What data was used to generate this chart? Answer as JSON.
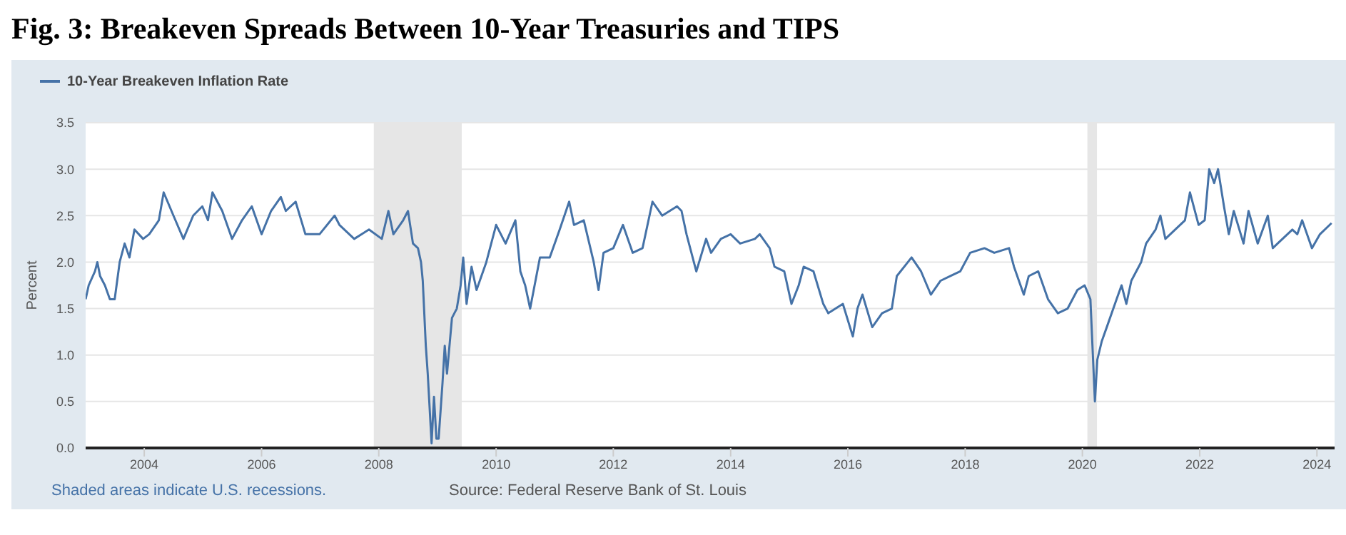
{
  "chart_data": {
    "type": "line",
    "title": "Fig. 3: Breakeven Spreads Between 10-Year Treasuries and TIPS",
    "ylabel": "Percent",
    "annotations": [
      "Shaded areas indicate U.S. recessions.",
      "Source: Federal Reserve Bank of St. Louis"
    ],
    "legend": "top left",
    "grid": "y",
    "marker": "none",
    "line_style": "solid",
    "xlim": [
      "2003-01",
      "2024-04-20"
    ],
    "xticks": [
      "2004",
      "2006",
      "2008",
      "2010",
      "2012",
      "2014",
      "2016",
      "2018",
      "2020",
      "2022",
      "2024"
    ],
    "ylim": [
      0,
      3.5
    ],
    "yticks": [
      {
        "value": 0,
        "label": "0.0"
      },
      0.5,
      {
        "value": 1,
        "label": "1.0"
      },
      1.5,
      {
        "value": 2,
        "label": "2.0"
      },
      2.5,
      {
        "value": 3,
        "label": "3.0"
      },
      3.5
    ],
    "bands": [
      {
        "axis": "x",
        "from": "2007-12",
        "to": "2009-06",
        "color": "#e6e6e6"
      },
      {
        "axis": "x",
        "from": "2020-02",
        "to": "2020-04",
        "color": "#e6e6e6"
      }
    ],
    "x": [
      "2003-01",
      "2003-01-20",
      "2003-02-28",
      "2003-03-15",
      "2003-04",
      "2003-05",
      "2003-06",
      "2003-07",
      "2003-08",
      "2003-09",
      "2003-10",
      "2003-11",
      "2003-12-25",
      "2004-02",
      "2004-04",
      "2004-05",
      "2004-07",
      "2004-09",
      "2004-11",
      "2004-12-28",
      "2005-02",
      "2005-03",
      "2005-05",
      "2005-07",
      "2005-09",
      "2005-11",
      "2006-01",
      "2006-03",
      "2006-05",
      "2006-06",
      "2006-08",
      "2006-10",
      "2006-12-28",
      "2007-04",
      "2007-05",
      "2007-08",
      "2007-11",
      "2008-01-20",
      "2008-03",
      "2008-04",
      "2008-06",
      "2008-07",
      "2008-08",
      "2008-09",
      "2008-09-20",
      "2008-10",
      "2008-10-20",
      "2008-11",
      "2008-11-25",
      "2008-12-10",
      "2008-12-25",
      "2009-01-08",
      "2009-02",
      "2009-02-15",
      "2009-03",
      "2009-04",
      "2009-05",
      "2009-05-25",
      "2009-06-10",
      "2009-07",
      "2009-08",
      "2009-09",
      "2009-11",
      "2010-01",
      "2010-03",
      "2010-05",
      "2010-06",
      "2010-07",
      "2010-08",
      "2010-10",
      "2010-12",
      "2011-02",
      "2011-04",
      "2011-05",
      "2011-07",
      "2011-09",
      "2011-10",
      "2011-11",
      "2012-01",
      "2012-03",
      "2012-05",
      "2012-07",
      "2012-09",
      "2012-11",
      "2013-02",
      "2013-03",
      "2013-04",
      "2013-06",
      "2013-08",
      "2013-09",
      "2013-11",
      "2014-01",
      "2014-03",
      "2014-06",
      "2014-07",
      "2014-09",
      "2014-10",
      "2014-12",
      "2015-01-15",
      "2015-03",
      "2015-04",
      "2015-06",
      "2015-08",
      "2015-09",
      "2015-12",
      "2016-02",
      "2016-03",
      "2016-04",
      "2016-06",
      "2016-08",
      "2016-10",
      "2016-11",
      "2017-02",
      "2017-04",
      "2017-06",
      "2017-08",
      "2017-10",
      "2017-12",
      "2018-02",
      "2018-05",
      "2018-07",
      "2018-10",
      "2018-11",
      "2019-01",
      "2019-02",
      "2019-04",
      "2019-06",
      "2019-08",
      "2019-10",
      "2019-12",
      "2020-01-15",
      "2020-02-20",
      "2020-03-05",
      "2020-03-19",
      "2020-04-03",
      "2020-05",
      "2020-06",
      "2020-08",
      "2020-09",
      "2020-10",
      "2020-11",
      "2021-01",
      "2021-02",
      "2021-04",
      "2021-05",
      "2021-06",
      "2021-08",
      "2021-10",
      "2021-11",
      "2021-12-25",
      "2022-02",
      "2022-03",
      "2022-04",
      "2022-04-25",
      "2022-06",
      "2022-07",
      "2022-08",
      "2022-10",
      "2022-11",
      "2022-12-28",
      "2023-03",
      "2023-04",
      "2023-05",
      "2023-08",
      "2023-09",
      "2023-10",
      "2023-12",
      "2024-01-20",
      "2024-04"
    ],
    "series": [
      {
        "name": "10-Year Breakeven Inflation Rate",
        "color": "#4572a7",
        "values": [
          1.6,
          1.75,
          1.9,
          2.0,
          1.85,
          1.75,
          1.6,
          1.6,
          2.0,
          2.2,
          2.05,
          2.35,
          2.25,
          2.3,
          2.45,
          2.75,
          2.5,
          2.25,
          2.5,
          2.6,
          2.45,
          2.75,
          2.55,
          2.25,
          2.45,
          2.6,
          2.3,
          2.55,
          2.7,
          2.55,
          2.65,
          2.3,
          2.3,
          2.5,
          2.4,
          2.25,
          2.35,
          2.25,
          2.55,
          2.3,
          2.45,
          2.55,
          2.2,
          2.15,
          2.0,
          1.8,
          1.1,
          0.8,
          0.05,
          0.55,
          0.1,
          0.1,
          0.7,
          1.1,
          0.8,
          1.4,
          1.5,
          1.75,
          2.05,
          1.55,
          1.95,
          1.7,
          2.0,
          2.4,
          2.2,
          2.45,
          1.9,
          1.75,
          1.5,
          2.05,
          2.05,
          2.35,
          2.65,
          2.4,
          2.45,
          2.0,
          1.7,
          2.1,
          2.15,
          2.4,
          2.1,
          2.15,
          2.65,
          2.5,
          2.6,
          2.55,
          2.3,
          1.9,
          2.25,
          2.1,
          2.25,
          2.3,
          2.2,
          2.25,
          2.3,
          2.15,
          1.95,
          1.9,
          1.55,
          1.75,
          1.95,
          1.9,
          1.55,
          1.45,
          1.55,
          1.2,
          1.5,
          1.65,
          1.3,
          1.45,
          1.5,
          1.85,
          2.05,
          1.9,
          1.65,
          1.8,
          1.85,
          1.9,
          2.1,
          2.15,
          2.1,
          2.15,
          1.95,
          1.65,
          1.85,
          1.9,
          1.6,
          1.45,
          1.5,
          1.7,
          1.75,
          1.6,
          1.05,
          0.5,
          0.95,
          1.15,
          1.3,
          1.6,
          1.75,
          1.55,
          1.8,
          2.0,
          2.2,
          2.35,
          2.5,
          2.25,
          2.35,
          2.45,
          2.75,
          2.4,
          2.45,
          3.0,
          2.85,
          3.0,
          2.6,
          2.3,
          2.55,
          2.2,
          2.55,
          2.2,
          2.5,
          2.15,
          2.2,
          2.35,
          2.3,
          2.45,
          2.15,
          2.3,
          2.42
        ]
      }
    ]
  }
}
